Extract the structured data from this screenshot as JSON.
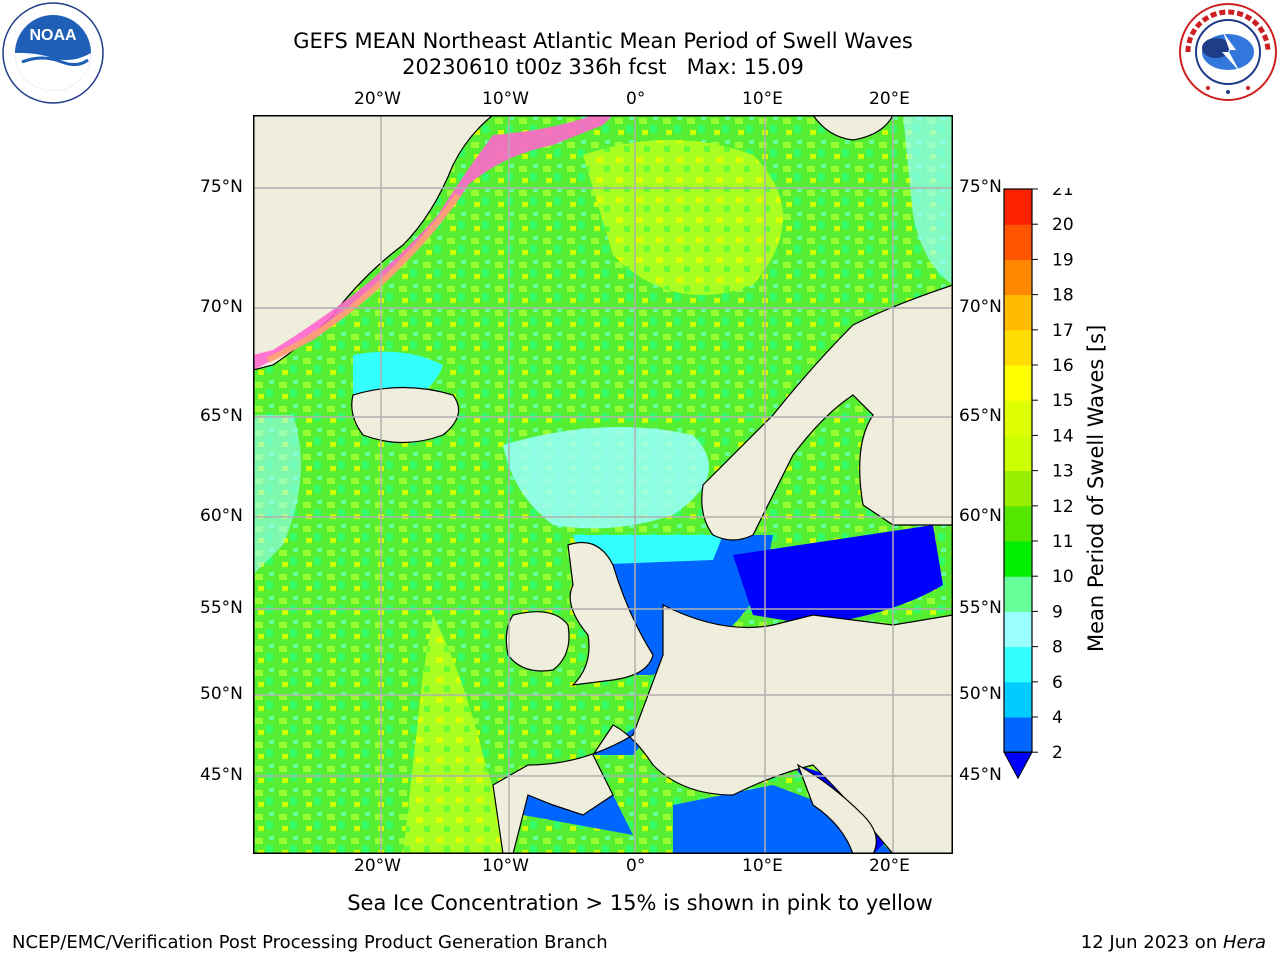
{
  "header": {
    "title_line1": "GEFS MEAN Northeast Atlantic Mean Period of Swell Waves",
    "title_line2": "20230610 t00z 336h fcst   Max: 15.09"
  },
  "logos": {
    "noaa_text": "NOAA",
    "noaa_ring": "NATIONAL OCEANIC AND ATMOSPHERIC ADMINISTRATION · U.S. DEPARTMENT OF COMMERCE",
    "nws_ring": "NATIONAL WEATHER SERVICE"
  },
  "map": {
    "lon_labels": [
      "20°W",
      "10°W",
      "0°",
      "10°E",
      "20°E"
    ],
    "lat_labels": [
      "75°N",
      "70°N",
      "65°N",
      "60°N",
      "55°N",
      "50°N",
      "45°N"
    ],
    "land_color": "#efeddc",
    "grid_color": "#b0b0b0",
    "ocean_field_colors": [
      "#33ff33",
      "#66ff66",
      "#99ff33",
      "#ccff00"
    ]
  },
  "colorbar": {
    "label": "Mean Period of Swell Waves [s]",
    "ticks": [
      "2",
      "4",
      "6",
      "8",
      "9",
      "10",
      "11",
      "12",
      "13",
      "14",
      "15",
      "16",
      "17",
      "18",
      "19",
      "20",
      "21"
    ],
    "colors": [
      "#0066ff",
      "#00ccff",
      "#33ffff",
      "#99ffff",
      "#66ff99",
      "#00ee00",
      "#55e600",
      "#99ee00",
      "#ccff00",
      "#ddff00",
      "#ffff00",
      "#ffdd00",
      "#ffbb00",
      "#ff8800",
      "#ff5500",
      "#ff2200"
    ],
    "under_color": "#0000ff",
    "extend": "min"
  },
  "footer": {
    "note": "Sea Ice Concentration > 15% is shown in pink to yellow",
    "credit": "NCEP/EMC/Verification Post Processing Product Generation Branch",
    "date": "12 Jun 2023 on ",
    "host": "Hera"
  }
}
